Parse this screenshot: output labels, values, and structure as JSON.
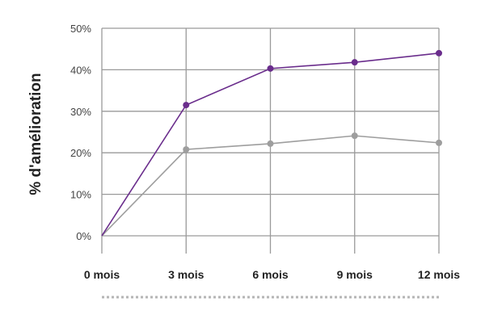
{
  "chart_data": {
    "type": "line",
    "ylabel": "% d'amélioration",
    "xlabel": "",
    "categories": [
      "0 mois",
      "3 mois",
      "6 mois",
      "9 mois",
      "12 mois"
    ],
    "yticks": [
      "0%",
      "10%",
      "20%",
      "30%",
      "40%",
      "50%"
    ],
    "ylim": [
      0,
      50
    ],
    "grid": true,
    "series": [
      {
        "color": "#6a2d8c",
        "values": [
          0,
          31.5,
          40.3,
          41.8,
          44.0
        ]
      },
      {
        "color": "#9e9e9e",
        "values": [
          0,
          20.8,
          22.2,
          24.1,
          22.4
        ]
      }
    ]
  }
}
